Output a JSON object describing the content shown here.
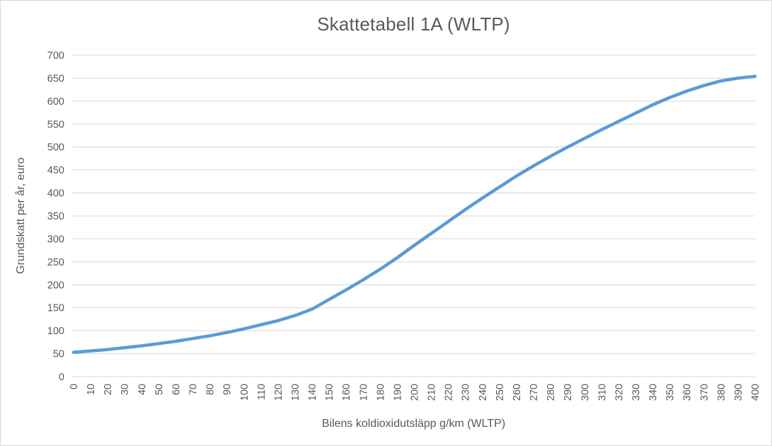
{
  "chart": {
    "title": "Skattetabell 1A (WLTP)",
    "y_axis_title": "Grundskatt per år, euro",
    "x_axis_title": "Bilens koldioxidutsläpp g/km (WLTP)"
  },
  "colors": {
    "line": "#5B9BD5",
    "gridline": "#D9D9D9",
    "axis_line": "#D9D9D9",
    "text": "#595959",
    "border": "#D9D9D9",
    "background": "#FFFFFF"
  },
  "chart_data": {
    "type": "line",
    "title": "Skattetabell 1A (WLTP)",
    "xlabel": "Bilens koldioxidutsläpp g/km (WLTP)",
    "ylabel": "Grundskatt per år, euro",
    "xlim": [
      0,
      400
    ],
    "ylim": [
      0,
      700
    ],
    "x_tick_step": 10,
    "y_tick_step": 50,
    "grid": true,
    "legend": false,
    "series_name": "Grundskatt per år, euro",
    "x": [
      0,
      10,
      20,
      30,
      40,
      50,
      60,
      70,
      80,
      90,
      100,
      110,
      120,
      130,
      140,
      150,
      160,
      170,
      180,
      190,
      200,
      210,
      220,
      230,
      240,
      250,
      260,
      270,
      280,
      290,
      300,
      310,
      320,
      330,
      340,
      350,
      360,
      370,
      380,
      390,
      400
    ],
    "y": [
      53,
      56,
      59,
      63,
      67,
      72,
      77,
      83,
      89,
      96,
      104,
      113,
      122,
      133,
      147,
      168,
      189,
      211,
      234,
      259,
      286,
      312,
      338,
      364,
      389,
      413,
      437,
      459,
      480,
      500,
      519,
      538,
      556,
      574,
      592,
      608,
      622,
      634,
      644,
      650,
      654
    ]
  }
}
